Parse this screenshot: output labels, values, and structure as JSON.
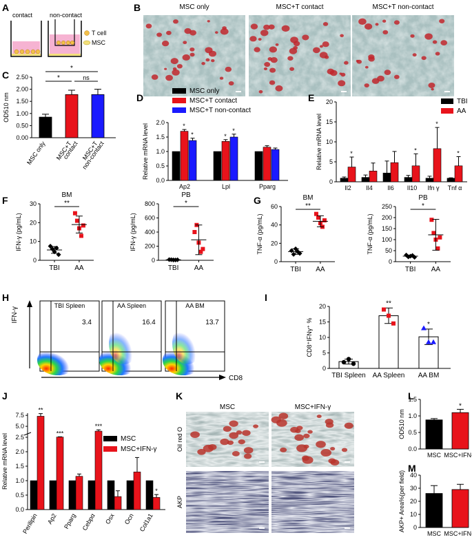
{
  "colors": {
    "black": "#000000",
    "red": "#e8131b",
    "blue": "#1a1aff",
    "wellPink": "#f6b3d2",
    "wellYellow": "#f3e07a"
  },
  "panelA": {
    "label": "A",
    "contact": "contact",
    "noncontact": "non-contact",
    "tcell": "T cell",
    "msc": "MSC"
  },
  "panelB": {
    "label": "B",
    "titles": [
      "MSC only",
      "MSC+T contact",
      "MSC+T non-contact"
    ]
  },
  "panelL": {
    "label": "L"
  },
  "panelM": {
    "label": "M"
  },
  "panelK": {
    "label": "K",
    "colTitles": [
      "MSC",
      "MSC+IFN-γ"
    ],
    "rowLabels": [
      "Oil red O",
      "AKP"
    ]
  },
  "panelH": {
    "label": "H",
    "titles": [
      "TBI Spleen",
      "AA Spleen",
      "AA BM"
    ],
    "values": [
      "3.4",
      "16.4",
      "13.7"
    ],
    "xlabel": "CD8",
    "ylabel": "IFN-γ"
  },
  "chart_data": [
    {
      "id": "C",
      "type": "bar",
      "ylabel": "OD510 nm",
      "ylim": [
        0,
        2.5
      ],
      "yticks": [
        "0.00",
        "0.50",
        "1.00",
        "1.50",
        "2.00",
        "2.50"
      ],
      "categories": [
        [
          "MSC only"
        ],
        [
          "MSC+T",
          "contact"
        ],
        [
          "MSC+T",
          "non-contact"
        ]
      ],
      "values": [
        0.85,
        1.78,
        1.78
      ],
      "errors": [
        0.12,
        0.18,
        0.22
      ],
      "colors": [
        "#000000",
        "#e8131b",
        "#1a1aff"
      ],
      "annotations": [
        "*",
        "*",
        "ns"
      ]
    },
    {
      "id": "D",
      "type": "bar",
      "ylabel": "Relative mRNA level",
      "ylim": [
        0,
        2.0
      ],
      "yticks": [
        "0.0",
        "0.5",
        "1.0",
        "1.5",
        "2.0"
      ],
      "categories": [
        "Ap2",
        "Lpl",
        "Pparg"
      ],
      "series": [
        {
          "name": "MSC only",
          "values": [
            1.0,
            1.0,
            1.0
          ],
          "errors": [
            0,
            0,
            0
          ]
        },
        {
          "name": "MSC+T contact",
          "values": [
            1.7,
            1.35,
            1.15
          ],
          "errors": [
            0.06,
            0.06,
            0.05
          ]
        },
        {
          "name": "MSC+T non-contact",
          "values": [
            1.38,
            1.5,
            1.07
          ],
          "errors": [
            0.08,
            0.1,
            0.05
          ]
        }
      ],
      "annotations": [
        "*",
        "*",
        "*",
        "*"
      ]
    },
    {
      "id": "E",
      "type": "bar",
      "ylabel": "Relative mRNA level",
      "ylim": [
        0,
        20
      ],
      "yticks": [
        "0",
        "5",
        "10",
        "15",
        "20"
      ],
      "categories": [
        "Il2",
        "Il4",
        "Il6",
        "Il10",
        "Ifn γ",
        "Tnf α"
      ],
      "series": [
        {
          "name": "TBI",
          "values": [
            0.9,
            1.1,
            2.2,
            1.1,
            0.9,
            0.9
          ],
          "errors": [
            0.3,
            0.6,
            3.0,
            0.5,
            0.5,
            0.1
          ]
        },
        {
          "name": "AA",
          "values": [
            3.7,
            2.7,
            4.8,
            4.0,
            8.3,
            4.0
          ],
          "errors": [
            2.5,
            2.0,
            2.8,
            3.0,
            5.3,
            2.3
          ]
        }
      ],
      "annotations": [
        "*",
        "*",
        "*",
        "*"
      ]
    },
    {
      "id": "F1",
      "type": "scatter",
      "title": "BM",
      "ylabel": "IFN-γ  (pg/mL)",
      "ylim": [
        0,
        30
      ],
      "yticks": [
        "0",
        "10",
        "20",
        "30"
      ],
      "categories": [
        "TBI",
        "AA"
      ],
      "points": [
        [
          7.5,
          6,
          4.5,
          6.5,
          3
        ],
        [
          25,
          21,
          17,
          13,
          18.5
        ]
      ],
      "means": [
        5.5,
        19
      ],
      "sd": [
        1.8,
        4.5
      ],
      "annotation": "**"
    },
    {
      "id": "F2",
      "type": "scatter",
      "title": "PB",
      "ylabel": "IFN-γ  (pg/mL)",
      "ylim": [
        0,
        800
      ],
      "yticks": [
        "0",
        "200",
        "400",
        "600",
        "800"
      ],
      "categories": [
        "TBI",
        "AA"
      ],
      "points": [
        [
          10,
          8,
          6,
          5,
          7
        ],
        [
          400,
          500,
          250,
          120,
          160
        ]
      ],
      "means": [
        7,
        290
      ],
      "sd": [
        3,
        210
      ],
      "annotation": "*"
    },
    {
      "id": "G1",
      "type": "scatter",
      "title": "BM",
      "ylabel": "TNF-α  (pg/mL)",
      "ylim": [
        0,
        60
      ],
      "yticks": [
        "0",
        "20",
        "40",
        "60"
      ],
      "categories": [
        "TBI",
        "AA"
      ],
      "points": [
        [
          12,
          8,
          14,
          11,
          9
        ],
        [
          52,
          48,
          42,
          38,
          45
        ]
      ],
      "means": [
        11,
        44
      ],
      "sd": [
        3,
        6
      ],
      "annotation": "**"
    },
    {
      "id": "G2",
      "type": "scatter",
      "title": "PB",
      "ylabel": "TNF-α  (pg/mL)",
      "ylim": [
        0,
        250
      ],
      "yticks": [
        "0",
        "50",
        "100",
        "150",
        "200",
        "250"
      ],
      "categories": [
        "TBI",
        "AA"
      ],
      "points": [
        [
          30,
          22,
          25,
          28,
          20
        ],
        [
          190,
          130,
          100,
          60,
          110
        ]
      ],
      "means": [
        25,
        122
      ],
      "sd": [
        4,
        70
      ],
      "annotation": "*"
    },
    {
      "id": "I",
      "type": "bar",
      "ylabel": "CD8⁺IFNγ⁺ %",
      "ylim": [
        0,
        20
      ],
      "yticks": [
        "0",
        "5",
        "10",
        "15",
        "20"
      ],
      "categories": [
        "TBI Spleen",
        "AA Spleen",
        "AA BM"
      ],
      "values": [
        2.2,
        17,
        10.2
      ],
      "errors": [
        0.8,
        2.5,
        2.5
      ],
      "points": [
        [
          2,
          3,
          1.5
        ],
        [
          19,
          17,
          14.5
        ],
        [
          13,
          8.5,
          8.5
        ]
      ],
      "annotations": [
        "**",
        "*"
      ]
    },
    {
      "id": "J",
      "type": "bar",
      "ylabel": "Relative mRNA level",
      "ylim": [
        0,
        8
      ],
      "yticks": [
        "0.0",
        "0.5",
        "1.0",
        "1.5",
        "2.0",
        "2.5",
        "5.0",
        "7.5"
      ],
      "categories": [
        "Perilipin",
        "Ap2",
        "Pparg",
        "Cebpα",
        "Osx",
        "Ocn",
        "Col1a1"
      ],
      "series": [
        {
          "name": "MSC",
          "values": [
            1,
            1,
            1,
            1,
            1,
            1,
            1
          ],
          "errors": [
            0,
            0,
            0,
            0,
            0,
            0,
            0
          ]
        },
        {
          "name": "MSC+IFN-γ",
          "values": [
            7.3,
            2.55,
            1.15,
            3.9,
            0.45,
            1.3,
            0.42
          ],
          "errors": [
            0.6,
            0.06,
            0.08,
            0.3,
            0.2,
            0.5,
            0.1
          ]
        }
      ],
      "annotations": [
        "**",
        "***",
        "***",
        "*"
      ]
    },
    {
      "id": "L",
      "type": "bar",
      "ylabel": "OD510 nm",
      "ylim": [
        0,
        1.5
      ],
      "yticks": [
        "0.0",
        "0.5",
        "1.0",
        "1.5"
      ],
      "categories": [
        "MSC",
        "MSC+IFN-γ"
      ],
      "values": [
        0.88,
        1.1
      ],
      "errors": [
        0.04,
        0.1
      ],
      "annotations": [
        "*"
      ]
    },
    {
      "id": "M",
      "type": "bar",
      "ylabel": "AKP+ Area%(per field)",
      "ylim": [
        0,
        40
      ],
      "yticks": [
        "0",
        "10",
        "20",
        "30",
        "40"
      ],
      "categories": [
        "MSC",
        "MSC+IFN-γ"
      ],
      "values": [
        26,
        29
      ],
      "errors": [
        6,
        4
      ]
    }
  ]
}
